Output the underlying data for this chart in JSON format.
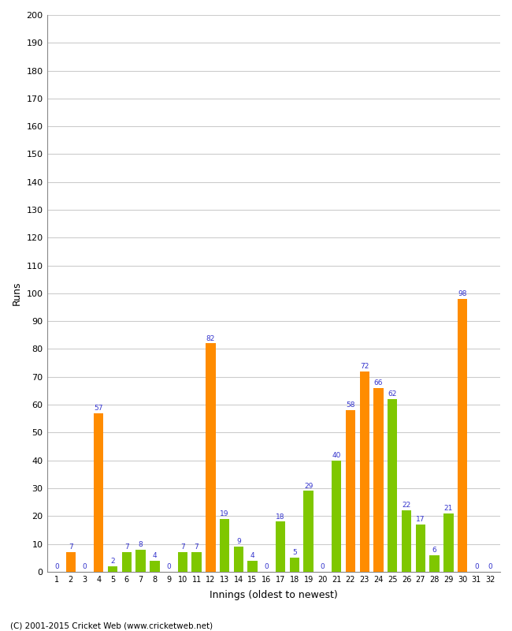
{
  "xlabel": "Innings (oldest to newest)",
  "ylabel": "Runs",
  "ylim": [
    0,
    200
  ],
  "yticks": [
    0,
    10,
    20,
    30,
    40,
    50,
    60,
    70,
    80,
    90,
    100,
    110,
    120,
    130,
    140,
    150,
    160,
    170,
    180,
    190,
    200
  ],
  "innings": [
    1,
    2,
    3,
    4,
    5,
    6,
    7,
    8,
    9,
    10,
    11,
    12,
    13,
    14,
    15,
    16,
    17,
    18,
    19,
    20,
    21,
    22,
    23,
    24,
    25,
    26,
    27,
    28,
    29,
    30,
    31,
    32
  ],
  "values": [
    0,
    7,
    0,
    57,
    2,
    7,
    8,
    4,
    0,
    7,
    7,
    82,
    19,
    9,
    4,
    0,
    18,
    5,
    29,
    0,
    40,
    58,
    72,
    66,
    62,
    22,
    17,
    6,
    21,
    98,
    0,
    0
  ],
  "colors": [
    "#7fc700",
    "#ff8c00",
    "#7fc700",
    "#ff8c00",
    "#7fc700",
    "#7fc700",
    "#7fc700",
    "#7fc700",
    "#7fc700",
    "#7fc700",
    "#7fc700",
    "#ff8c00",
    "#7fc700",
    "#7fc700",
    "#7fc700",
    "#7fc700",
    "#7fc700",
    "#7fc700",
    "#7fc700",
    "#7fc700",
    "#7fc700",
    "#ff8c00",
    "#ff8c00",
    "#ff8c00",
    "#7fc700",
    "#7fc700",
    "#7fc700",
    "#7fc700",
    "#7fc700",
    "#ff8c00",
    "#7fc700",
    "#7fc700"
  ],
  "label_color": "#3333cc",
  "background_color": "#ffffff",
  "grid_color": "#cccccc",
  "footer": "(C) 2001-2015 Cricket Web (www.cricketweb.net)"
}
